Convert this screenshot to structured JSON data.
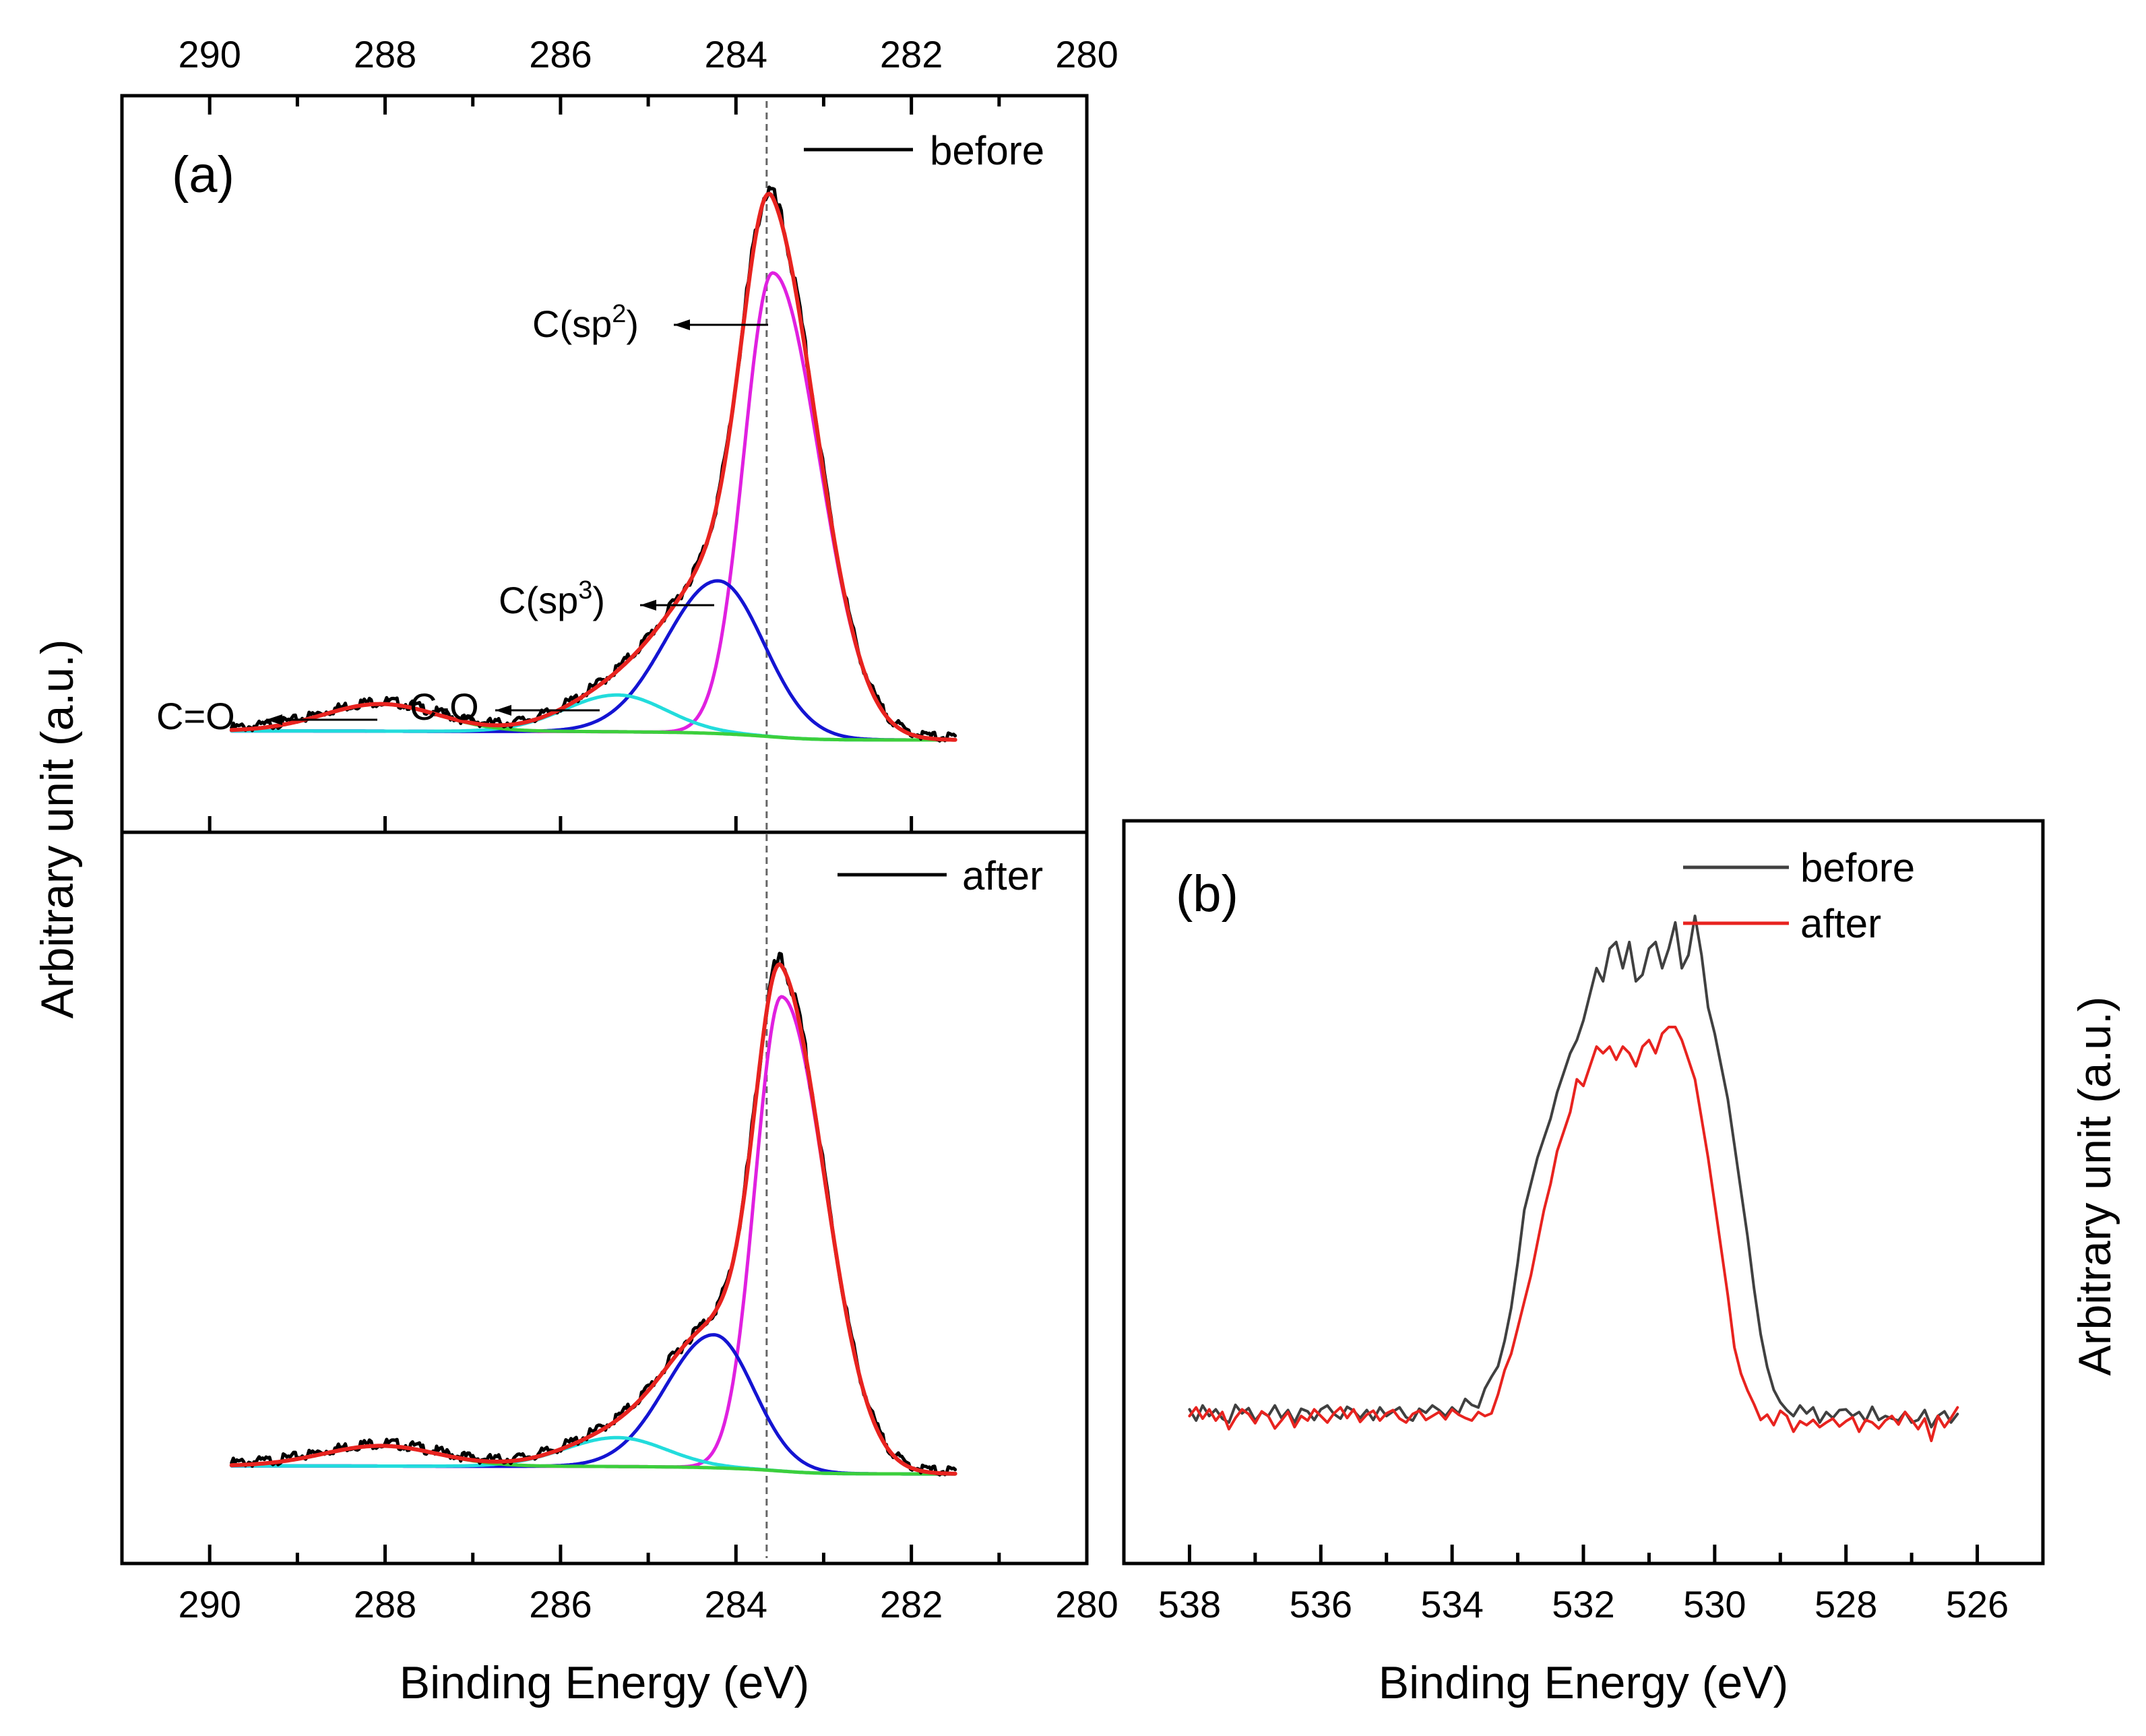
{
  "chart_data": [
    {
      "id": "a",
      "type": "line",
      "panel_label": "(a)",
      "xlabel": "Binding Energy (eV)",
      "ylabel": "Arbitrary unit (a.u.)",
      "xlim": [
        291,
        280
      ],
      "x_ticks": [
        290,
        288,
        286,
        284,
        282,
        280
      ],
      "reference_line_x": 283.65,
      "colors": {
        "data": "#000000",
        "envelope": "#e8231f",
        "sp2": "#e020e0",
        "sp3": "#1414d2",
        "co": "#22dcdc",
        "c_eq_o": "#3ccf3c"
      },
      "subplots": [
        {
          "id": "before",
          "legend": "before",
          "ylim": [
            0,
            1.06
          ],
          "baseline": 0.05,
          "components": [
            {
              "name": "C(sp2)",
              "center": 283.58,
              "amplitude": 0.82,
              "sigma_left": 0.33,
              "sigma_right": 0.53,
              "color": "sp2"
            },
            {
              "name": "C(sp3)",
              "center": 284.2,
              "amplitude": 0.27,
              "sigma_left": 0.6,
              "sigma_right": 0.52,
              "color": "sp3"
            },
            {
              "name": "C-O",
              "center": 285.35,
              "amplitude": 0.065,
              "sigma_left": 0.6,
              "sigma_right": 0.55,
              "color": "co"
            },
            {
              "name": "C=O",
              "center": 288.05,
              "amplitude": 0.048,
              "sigma_left": 0.65,
              "sigma_right": 0.65,
              "color": "c_eq_o"
            }
          ],
          "annotations": [
            {
              "text": "C(sp",
              "sup": "2",
              "close": ")",
              "x": 283.58
            },
            {
              "text": "C(sp",
              "sup": "3",
              "close": ")",
              "x": 284.2
            },
            {
              "text": "C-O",
              "sup": "",
              "close": "",
              "x": 285.35
            },
            {
              "text": "C=O",
              "sup": "",
              "close": "",
              "x": 288.05
            }
          ]
        },
        {
          "id": "after",
          "legend": "after",
          "ylim": [
            0,
            1.06
          ],
          "baseline": 0.05,
          "components": [
            {
              "name": "C(sp2)",
              "center": 283.48,
              "amplitude": 0.82,
              "sigma_left": 0.3,
              "sigma_right": 0.5,
              "color": "sp2"
            },
            {
              "name": "C(sp3)",
              "center": 284.25,
              "amplitude": 0.23,
              "sigma_left": 0.55,
              "sigma_right": 0.45,
              "color": "sp3"
            },
            {
              "name": "C-O",
              "center": 285.35,
              "amplitude": 0.05,
              "sigma_left": 0.6,
              "sigma_right": 0.55,
              "color": "co"
            },
            {
              "name": "C=O",
              "center": 288.05,
              "amplitude": 0.035,
              "sigma_left": 0.65,
              "sigma_right": 0.65,
              "color": "c_eq_o"
            }
          ]
        }
      ],
      "x_range_data": [
        289.75,
        281.5
      ]
    },
    {
      "id": "b",
      "type": "line",
      "panel_label": "(b)",
      "xlabel": "Binding Energy (eV)",
      "ylabel": "Arbitrary unit (a.u.)",
      "xlim": [
        539,
        525
      ],
      "x_ticks": [
        538,
        536,
        534,
        532,
        530,
        528,
        526
      ],
      "ylim": [
        0,
        1.0
      ],
      "series": [
        {
          "name": "before",
          "color": "#404040",
          "x_start": 538,
          "x_step": -0.1,
          "values": [
            0.215,
            0.198,
            0.221,
            0.205,
            0.215,
            0.201,
            0.195,
            0.222,
            0.209,
            0.217,
            0.198,
            0.211,
            0.205,
            0.221,
            0.202,
            0.214,
            0.195,
            0.216,
            0.212,
            0.199,
            0.215,
            0.221,
            0.208,
            0.201,
            0.219,
            0.213,
            0.202,
            0.214,
            0.199,
            0.218,
            0.205,
            0.212,
            0.218,
            0.203,
            0.198,
            0.216,
            0.21,
            0.221,
            0.214,
            0.205,
            0.218,
            0.209,
            0.231,
            0.222,
            0.218,
            0.247,
            0.265,
            0.281,
            0.32,
            0.37,
            0.44,
            0.52,
            0.56,
            0.6,
            0.63,
            0.66,
            0.7,
            0.73,
            0.76,
            0.78,
            0.81,
            0.85,
            0.89,
            0.87,
            0.92,
            0.93,
            0.89,
            0.93,
            0.87,
            0.88,
            0.92,
            0.93,
            0.89,
            0.92,
            0.96,
            0.89,
            0.91,
            0.97,
            0.91,
            0.83,
            0.79,
            0.74,
            0.69,
            0.62,
            0.55,
            0.48,
            0.4,
            0.33,
            0.28,
            0.245,
            0.226,
            0.214,
            0.205,
            0.221,
            0.209,
            0.218,
            0.195,
            0.211,
            0.202,
            0.214,
            0.215,
            0.205,
            0.211,
            0.197,
            0.219,
            0.199,
            0.205,
            0.201,
            0.198,
            0.211,
            0.195,
            0.199,
            0.214,
            0.188,
            0.205,
            0.212,
            0.195,
            0.208
          ]
        },
        {
          "name": "after",
          "color": "#e8231f",
          "x_start": 538,
          "x_step": -0.1,
          "values": [
            0.205,
            0.218,
            0.201,
            0.215,
            0.198,
            0.211,
            0.185,
            0.202,
            0.215,
            0.208,
            0.194,
            0.212,
            0.205,
            0.186,
            0.198,
            0.211,
            0.188,
            0.205,
            0.198,
            0.215,
            0.205,
            0.195,
            0.209,
            0.218,
            0.202,
            0.215,
            0.196,
            0.207,
            0.213,
            0.198,
            0.209,
            0.214,
            0.201,
            0.195,
            0.208,
            0.213,
            0.199,
            0.205,
            0.211,
            0.2,
            0.215,
            0.207,
            0.202,
            0.198,
            0.211,
            0.205,
            0.209,
            0.238,
            0.275,
            0.3,
            0.34,
            0.38,
            0.42,
            0.47,
            0.52,
            0.56,
            0.61,
            0.64,
            0.67,
            0.72,
            0.71,
            0.74,
            0.77,
            0.76,
            0.77,
            0.75,
            0.77,
            0.76,
            0.74,
            0.77,
            0.78,
            0.76,
            0.79,
            0.8,
            0.8,
            0.78,
            0.75,
            0.72,
            0.66,
            0.6,
            0.53,
            0.46,
            0.39,
            0.31,
            0.27,
            0.244,
            0.223,
            0.199,
            0.207,
            0.191,
            0.213,
            0.205,
            0.181,
            0.197,
            0.191,
            0.199,
            0.188,
            0.195,
            0.201,
            0.189,
            0.197,
            0.203,
            0.181,
            0.199,
            0.195,
            0.186,
            0.198,
            0.205,
            0.192,
            0.211,
            0.199,
            0.185,
            0.201,
            0.167,
            0.205,
            0.188,
            0.202,
            0.218
          ]
        }
      ]
    }
  ]
}
